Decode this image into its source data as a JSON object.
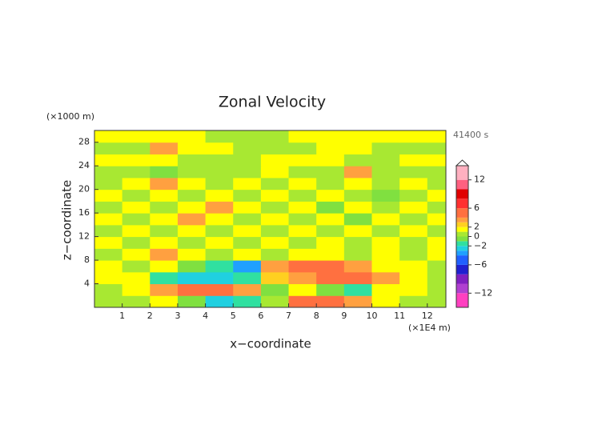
{
  "chart_data": {
    "type": "contour",
    "title": "Zonal Velocity",
    "x_label": "x−coordinate",
    "y_label": "z−coordinate",
    "x_unit": "(×1E4 m)",
    "y_unit": "(×1000 m)",
    "time_label": "41400 s",
    "xlim": [
      0,
      12.67
    ],
    "ylim": [
      0,
      30
    ],
    "xticks": [
      1,
      2,
      3,
      4,
      5,
      6,
      7,
      8,
      9,
      10,
      11,
      12
    ],
    "yticks": [
      4,
      8,
      12,
      16,
      20,
      24,
      28
    ],
    "x": [
      0.5,
      1.5,
      2.5,
      3.5,
      4.5,
      5.5,
      6.5,
      7.5,
      8.5,
      9.5,
      10.5,
      11.5,
      12.5
    ],
    "y": [
      1,
      3,
      5,
      7,
      9,
      11,
      13,
      15,
      17,
      19,
      21,
      23,
      25,
      27,
      29
    ],
    "z": [
      [
        0.5,
        0.5,
        1.5,
        -1,
        -3,
        -2,
        0.5,
        4,
        5,
        3,
        1.5,
        0.5,
        0.5
      ],
      [
        0.5,
        1.5,
        3,
        4,
        4.5,
        3,
        -1,
        1.5,
        -1,
        -2,
        1,
        1.5,
        0.5
      ],
      [
        1.5,
        1.5,
        -2,
        -3,
        -3,
        -2,
        2,
        3,
        4,
        4,
        3,
        1.5,
        0.5
      ],
      [
        1.5,
        0.5,
        1.5,
        -1,
        -2,
        -4,
        3,
        5,
        4,
        3,
        1.5,
        1.5,
        0.5
      ],
      [
        0.5,
        1.5,
        3,
        1.5,
        0.5,
        1.5,
        0.5,
        1.5,
        1.5,
        0.5,
        1.5,
        0.5,
        1.5
      ],
      [
        1.5,
        0.5,
        1.5,
        0.5,
        1.5,
        0.5,
        1.5,
        0.5,
        1.5,
        0.5,
        1.5,
        0.5,
        1.5
      ],
      [
        0.5,
        1.5,
        0.5,
        1.5,
        0.5,
        1.5,
        0.5,
        1.5,
        0.5,
        1.5,
        0.5,
        1.5,
        0.5
      ],
      [
        1.5,
        0.5,
        1.5,
        3,
        1.5,
        0.5,
        1.5,
        0.5,
        1.5,
        -1,
        1.5,
        0.5,
        1.5
      ],
      [
        0.5,
        1.5,
        0.5,
        1.5,
        3,
        1.5,
        0.5,
        1.5,
        -1,
        1.5,
        0.5,
        1.5,
        0.5
      ],
      [
        1.5,
        0.5,
        1.5,
        0.5,
        1.5,
        0.5,
        1.5,
        0.5,
        1.5,
        0.5,
        -1,
        0.5,
        1.5
      ],
      [
        0.5,
        1.5,
        3,
        1.5,
        0.5,
        1.5,
        0.5,
        1.5,
        0.5,
        1.5,
        0.5,
        1.5,
        0.5
      ],
      [
        0.5,
        0.5,
        -1,
        0.5,
        0.5,
        0.5,
        1.5,
        0.5,
        0.5,
        3,
        0.5,
        0.5,
        0.5
      ],
      [
        1.5,
        1.5,
        1.5,
        0.5,
        0.5,
        0.5,
        1.5,
        1.5,
        1.5,
        0.5,
        0.5,
        1.5,
        1.5
      ],
      [
        0.5,
        0.5,
        3,
        1.5,
        1.5,
        0.5,
        0.5,
        0.5,
        1.5,
        1.5,
        0.5,
        0.5,
        0.5
      ],
      [
        1.5,
        1.5,
        1.5,
        1.5,
        0.5,
        0.5,
        0.5,
        1.5,
        1.5,
        1.5,
        1.5,
        1.5,
        1.5
      ]
    ],
    "levels": [
      -15,
      -12,
      -10,
      -8,
      -6,
      -4,
      -3,
      -2,
      -1,
      0,
      1,
      2,
      3,
      4,
      6,
      8,
      10,
      12,
      15
    ],
    "colors": [
      "#ff40c0",
      "#b040d0",
      "#8020c0",
      "#2020d0",
      "#2060ff",
      "#20a0ff",
      "#20d0e0",
      "#30e0a0",
      "#80e040",
      "#a8e832",
      "#ffff00",
      "#ffd020",
      "#ffa040",
      "#ff7040",
      "#ff3030",
      "#e00000",
      "#ff6080",
      "#ffb0c0"
    ],
    "colorbar_lim": [
      -15,
      15
    ],
    "colorbar_ticks": [
      {
        "value": -12,
        "label": "−12"
      },
      {
        "value": -6,
        "label": "−6"
      },
      {
        "value": -2,
        "label": "−2"
      },
      0,
      2,
      6,
      12
    ]
  }
}
